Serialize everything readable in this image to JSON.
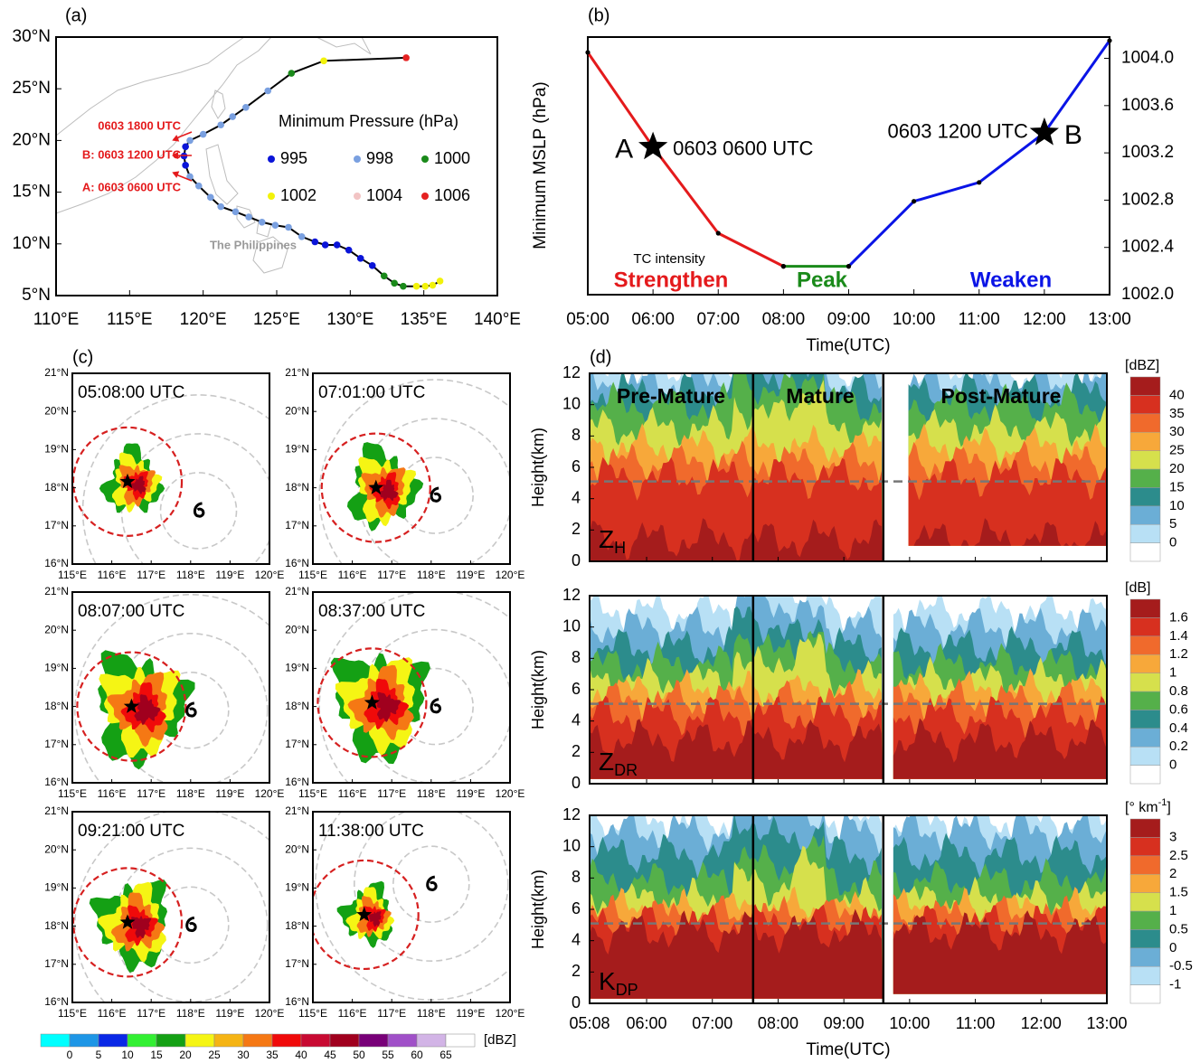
{
  "chart_data": [
    {
      "type": "track",
      "panel_label": "(a)",
      "xlim": [
        110,
        140
      ],
      "ylim": [
        5,
        30
      ],
      "xticks": [
        {
          "value": 110,
          "label": "110°E"
        },
        {
          "value": 115,
          "label": "115°E"
        },
        {
          "value": 120,
          "label": "120°E"
        },
        {
          "value": 125,
          "label": "125°E"
        },
        {
          "value": 130,
          "label": "130°E"
        },
        {
          "value": 135,
          "label": "135°E"
        },
        {
          "value": 140,
          "label": "140°E"
        }
      ],
      "yticks": [
        {
          "value": 5,
          "label": "5°N"
        },
        {
          "value": 10,
          "label": "10°N"
        },
        {
          "value": 15,
          "label": "15°N"
        },
        {
          "value": 20,
          "label": "20°N"
        },
        {
          "value": 25,
          "label": "25°N"
        },
        {
          "value": 30,
          "label": "30°N"
        }
      ],
      "x": [
        136.1,
        135.6,
        135.1,
        134.5,
        133.6,
        133.0,
        132.3,
        131.5,
        130.7,
        129.9,
        129.1,
        128.3,
        127.6,
        126.7,
        125.8,
        124.9,
        124.0,
        123.1,
        122.2,
        121.2,
        120.5,
        119.7,
        119.1,
        118.8,
        118.7,
        118.8,
        119.1,
        120.0,
        121.2,
        122.0,
        122.9,
        124.4,
        126.0,
        128.2,
        133.8
      ],
      "y": [
        6.4,
        6.0,
        5.9,
        5.9,
        5.9,
        6.2,
        6.9,
        7.9,
        8.6,
        9.4,
        9.9,
        9.9,
        10.2,
        10.7,
        11.6,
        11.8,
        12.1,
        12.6,
        13.1,
        13.6,
        14.5,
        15.6,
        16.5,
        17.6,
        18.5,
        19.4,
        20.0,
        20.6,
        21.5,
        22.3,
        23.2,
        24.8,
        26.5,
        27.7,
        28.0
      ],
      "pressure": [
        1002,
        1002,
        1002,
        1002,
        1000,
        1000,
        1000,
        995,
        995,
        995,
        995,
        995,
        995,
        998,
        998,
        998,
        998,
        998,
        998,
        998,
        998,
        998,
        998,
        995,
        995,
        995,
        998,
        998,
        998,
        998,
        998,
        998,
        1000,
        1002,
        1006
      ],
      "legend_title": "Minimum Pressure (hPa)",
      "legend": [
        {
          "value": 995,
          "color": "#0a14d8"
        },
        {
          "value": 998,
          "color": "#7aa0e0"
        },
        {
          "value": 1000,
          "color": "#1a8a1a"
        },
        {
          "value": 1002,
          "color": "#f2f20a"
        },
        {
          "value": 1004,
          "color": "#f2c4c4"
        },
        {
          "value": 1006,
          "color": "#e52222"
        }
      ],
      "annotations": [
        "0603 1800 UTC",
        "B: 0603 1200 UTC",
        "A: 0603 0600 UTC"
      ],
      "region_label": "The Philippines"
    },
    {
      "type": "line",
      "panel_label": "(b)",
      "categories": [
        "05:00",
        "06:00",
        "07:00",
        "08:00",
        "09:00",
        "10:00",
        "11:00",
        "12:00",
        "13:00"
      ],
      "series": [
        {
          "name": "Strengthen",
          "color": "#e41a1c",
          "values": [
            1004.05,
            1003.25,
            1002.52,
            1002.24,
            null,
            null,
            null,
            null,
            null
          ]
        },
        {
          "name": "Peak",
          "color": "#1a8a1a",
          "values": [
            null,
            null,
            null,
            1002.24,
            1002.24,
            null,
            null,
            null,
            null
          ]
        },
        {
          "name": "Weaken",
          "color": "#0a14e6",
          "values": [
            null,
            null,
            null,
            null,
            1002.24,
            1002.79,
            1002.95,
            1003.37,
            1004.15
          ]
        }
      ],
      "ylim": [
        1002.0,
        1004.18
      ],
      "yticks": [
        {
          "value": 1002.0,
          "label": "1002.0"
        },
        1002.4,
        1002.8,
        1003.2,
        1003.6,
        {
          "value": 1004.0,
          "label": "1004.0"
        }
      ],
      "ylabel": "Minimum MSLP (hPa)",
      "xlabel": "Time(UTC)",
      "legend_title": "TC intensity",
      "markers": [
        {
          "label": "A",
          "time_label": "0603 0600 UTC",
          "x": 1,
          "y": 1003.25
        },
        {
          "label": "B",
          "time_label": "0603 1200 UTC",
          "x": 7,
          "y": 1003.37
        }
      ]
    },
    {
      "type": "radar",
      "panel_label": "(c)",
      "xlim": [
        115,
        120
      ],
      "ylim": [
        16,
        21
      ],
      "xticks": [
        {
          "value": 115,
          "label": "115°E"
        },
        {
          "value": 116,
          "label": "116°E"
        },
        {
          "value": 117,
          "label": "117°E"
        },
        {
          "value": 118,
          "label": "118°E"
        },
        {
          "value": 119,
          "label": "119°E"
        },
        {
          "value": 120,
          "label": "120°E"
        }
      ],
      "yticks": [
        {
          "value": 16,
          "label": "16°N"
        },
        {
          "value": 17,
          "label": "17°N"
        },
        {
          "value": 18,
          "label": "18°N"
        },
        {
          "value": 19,
          "label": "19°N"
        },
        {
          "value": 20,
          "label": "20°N"
        },
        {
          "value": 21,
          "label": "21°N"
        }
      ],
      "panels": [
        {
          "title": "05:08:00 UTC",
          "center": [
            116.4,
            18.16
          ],
          "tc": [
            118.2,
            17.4
          ]
        },
        {
          "title": "07:01:00 UTC",
          "center": [
            116.6,
            18.0
          ],
          "tc": [
            118.1,
            17.8
          ]
        },
        {
          "title": "08:07:00 UTC",
          "center": [
            116.5,
            18.0
          ],
          "tc": [
            118.0,
            17.9
          ]
        },
        {
          "title": "08:37:00 UTC",
          "center": [
            116.5,
            18.1
          ],
          "tc": [
            118.1,
            18.0
          ]
        },
        {
          "title": "09:21:00 UTC",
          "center": [
            116.4,
            18.1
          ],
          "tc": [
            118.0,
            18.03
          ]
        },
        {
          "title": "11:38:00 UTC",
          "center": [
            116.3,
            18.3
          ],
          "tc": [
            118.0,
            19.1
          ]
        }
      ],
      "colorbar": {
        "unit": "[dBZ]",
        "ticks": [
          0,
          5,
          10,
          15,
          20,
          25,
          30,
          35,
          40,
          45,
          50,
          55,
          60,
          65
        ],
        "colors": [
          "#00ffff",
          "#1e96e6",
          "#0a28e6",
          "#32f032",
          "#14a014",
          "#f5f514",
          "#f5b414",
          "#f57814",
          "#f00a0a",
          "#c80a32",
          "#a0001e",
          "#780078",
          "#a050c8",
          "#d2b4e6",
          "#ffffff"
        ]
      }
    },
    {
      "type": "contour",
      "panel_label": "(d)",
      "xlim": [
        5.133,
        13
      ],
      "xticks": [
        {
          "value": 5.133,
          "label": "05:08"
        },
        {
          "value": 6,
          "label": "06:00"
        },
        {
          "value": 7,
          "label": "07:00"
        },
        {
          "value": 8,
          "label": "08:00"
        },
        {
          "value": 9,
          "label": "09:00"
        },
        {
          "value": 10,
          "label": "10:00"
        },
        {
          "value": 11,
          "label": "11:00"
        },
        {
          "value": 12,
          "label": "12:00"
        },
        {
          "value": 13,
          "label": "13:00"
        }
      ],
      "ylim": [
        0,
        12
      ],
      "yticks": [
        0,
        2,
        4,
        6,
        8,
        10,
        12
      ],
      "ylabel": "Height(km)",
      "xlabel": "Time(UTC)",
      "phases": [
        "Pre-Mature",
        "Mature",
        "Post-Mature"
      ],
      "phase_boundaries": [
        7.62,
        9.6
      ],
      "hline": 5.1,
      "plots": [
        {
          "symbol": "Z",
          "subscript": "H",
          "colorbar": {
            "unit": "[dBZ]",
            "ticks": [
              0,
              5,
              10,
              15,
              20,
              25,
              30,
              35,
              40
            ],
            "colors": [
              "#ffffff",
              "#b8e0f5",
              "#6baed6",
              "#2c8c8c",
              "#55b04a",
              "#d6e04c",
              "#f7a83a",
              "#f06a2c",
              "#d7301f",
              "#a51c1c"
            ]
          }
        },
        {
          "symbol": "Z",
          "subscript": "DR",
          "colorbar": {
            "unit": "[dB]",
            "ticks": [
              0,
              0.2,
              0.4,
              0.6,
              0.8,
              1,
              1.2,
              1.4,
              1.6
            ],
            "colors": [
              "#ffffff",
              "#b8e0f5",
              "#6baed6",
              "#2c8c8c",
              "#55b04a",
              "#d6e04c",
              "#f7a83a",
              "#f06a2c",
              "#d7301f",
              "#a51c1c"
            ]
          }
        },
        {
          "symbol": "K",
          "subscript": "DP",
          "colorbar": {
            "unit": "[° km",
            "unit_sup": "-1",
            "unit_end": "]",
            "ticks": [
              -1,
              -0.5,
              0,
              0.5,
              1,
              1.5,
              2,
              2.5,
              3
            ],
            "colors": [
              "#ffffff",
              "#b8e0f5",
              "#6baed6",
              "#2c8c8c",
              "#55b04a",
              "#d6e04c",
              "#f7a83a",
              "#f06a2c",
              "#d7301f",
              "#a51c1c"
            ]
          }
        }
      ]
    }
  ]
}
